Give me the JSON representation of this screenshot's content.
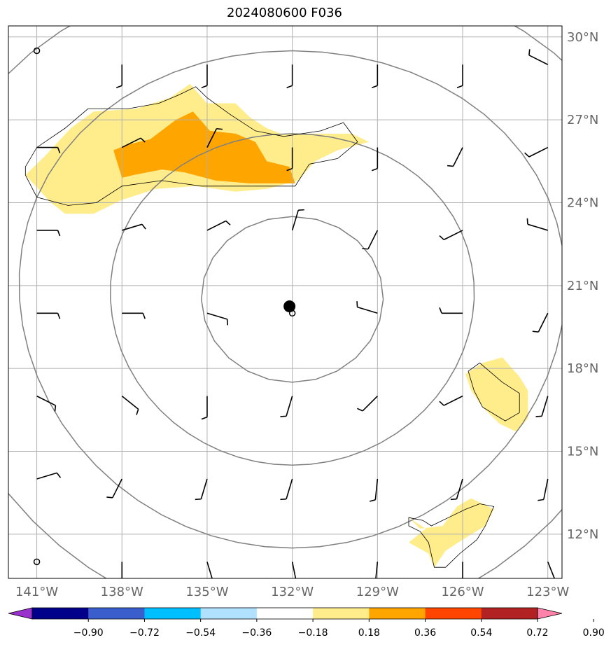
{
  "title": "2024080600 F036",
  "map": {
    "lon_range": [
      -142.0,
      -122.5
    ],
    "lat_range": [
      10.4,
      30.4
    ],
    "lon_ticks": [
      "141°W",
      "138°W",
      "135°W",
      "132°W",
      "129°W",
      "126°W",
      "123°W"
    ],
    "lat_ticks": [
      "30°N",
      "27°N",
      "24°N",
      "21°N",
      "18°N",
      "15°N",
      "12°N"
    ],
    "lon_tick_values": [
      -141,
      -138,
      -135,
      -132,
      -129,
      -126,
      -123
    ],
    "lat_tick_values": [
      30,
      27,
      24,
      21,
      18,
      15,
      12
    ],
    "grid": true,
    "center": {
      "lon": -132.0,
      "lat": 20.5,
      "marker": "filled-circle"
    },
    "range_rings_deg": [
      3,
      6,
      9,
      12
    ]
  },
  "colorbar": {
    "tick_labels": [
      "−0.90",
      "−0.72",
      "−0.54",
      "−0.36",
      "−0.18",
      "0.18",
      "0.36",
      "0.54",
      "0.72",
      "0.90"
    ],
    "levels": [
      -0.9,
      -0.72,
      -0.54,
      -0.36,
      -0.18,
      0.18,
      0.36,
      0.54,
      0.72,
      0.9
    ],
    "colors": [
      "#9932cc",
      "#00008b",
      "#3a5fcd",
      "#00bfff",
      "#b0e2ff",
      "#ffffff",
      "#ffec8b",
      "#ffa500",
      "#ff4500",
      "#b22222",
      "#ff82ab"
    ],
    "extend": "both"
  },
  "chart_data": {
    "type": "heatmap",
    "title": "2024080600 F036",
    "contour_fill": [
      {
        "level": "0.18-0.36",
        "color": "#ffec8b",
        "region": "north",
        "polygon": [
          [
            -141.4,
            25.0
          ],
          [
            -140.7,
            25.7
          ],
          [
            -139.8,
            26.7
          ],
          [
            -139.0,
            27.3
          ],
          [
            -137.5,
            27.4
          ],
          [
            -136.3,
            27.8
          ],
          [
            -135.6,
            28.3
          ],
          [
            -135.0,
            27.6
          ],
          [
            -134.0,
            27.6
          ],
          [
            -133.5,
            27.1
          ],
          [
            -132.9,
            26.7
          ],
          [
            -132.4,
            26.5
          ],
          [
            -131.1,
            26.5
          ],
          [
            -129.9,
            26.5
          ],
          [
            -129.3,
            26.2
          ],
          [
            -130.4,
            25.9
          ],
          [
            -131.2,
            25.5
          ],
          [
            -131.8,
            24.8
          ],
          [
            -132.9,
            24.5
          ],
          [
            -134.0,
            24.4
          ],
          [
            -135.4,
            24.6
          ],
          [
            -136.8,
            24.5
          ],
          [
            -138.0,
            24.1
          ],
          [
            -139.0,
            23.6
          ],
          [
            -140.0,
            23.6
          ],
          [
            -140.5,
            24.0
          ]
        ]
      },
      {
        "level": "0.36-0.54",
        "color": "#ffa500",
        "region": "north",
        "polygon": [
          [
            -138.3,
            25.9
          ],
          [
            -137.8,
            26.1
          ],
          [
            -137.0,
            26.3
          ],
          [
            -136.1,
            27.0
          ],
          [
            -135.5,
            27.3
          ],
          [
            -134.9,
            26.6
          ],
          [
            -134.0,
            26.5
          ],
          [
            -133.3,
            26.2
          ],
          [
            -132.9,
            25.5
          ],
          [
            -132.1,
            25.3
          ],
          [
            -131.9,
            24.7
          ],
          [
            -133.5,
            24.7
          ],
          [
            -134.7,
            24.8
          ],
          [
            -135.8,
            25.1
          ],
          [
            -136.6,
            25.2
          ],
          [
            -137.6,
            25.0
          ],
          [
            -138.0,
            24.9
          ]
        ]
      },
      {
        "level": "0.18-0.36",
        "color": "#ffec8b",
        "region": "east",
        "polygon": [
          [
            -124.6,
            18.4
          ],
          [
            -124.0,
            17.7
          ],
          [
            -123.7,
            17.2
          ],
          [
            -123.7,
            16.2
          ],
          [
            -124.1,
            15.7
          ],
          [
            -124.7,
            16.0
          ],
          [
            -125.3,
            16.6
          ],
          [
            -125.7,
            17.2
          ],
          [
            -125.9,
            17.8
          ],
          [
            -125.3,
            18.2
          ]
        ]
      },
      {
        "level": "0.18-0.36",
        "color": "#ffec8b",
        "region": "southeast",
        "polygon": [
          [
            -127.9,
            12.6
          ],
          [
            -127.3,
            12.2
          ],
          [
            -127.9,
            11.7
          ],
          [
            -127.2,
            11.3
          ],
          [
            -127.0,
            10.8
          ],
          [
            -126.6,
            11.4
          ],
          [
            -126.0,
            11.8
          ],
          [
            -125.2,
            12.3
          ],
          [
            -124.9,
            12.9
          ],
          [
            -125.7,
            13.3
          ],
          [
            -126.2,
            13.0
          ],
          [
            -126.7,
            12.3
          ],
          [
            -127.5,
            12.2
          ]
        ]
      }
    ],
    "contour_lines": [
      {
        "polygon": [
          [
            -141.4,
            25.0
          ],
          [
            -141.0,
            24.2
          ],
          [
            -139.9,
            23.9
          ],
          [
            -138.9,
            24.0
          ],
          [
            -138.0,
            24.6
          ],
          [
            -136.6,
            24.8
          ],
          [
            -135.2,
            24.6
          ],
          [
            -133.2,
            24.6
          ],
          [
            -131.9,
            24.6
          ],
          [
            -131.4,
            25.4
          ],
          [
            -130.4,
            25.6
          ],
          [
            -129.7,
            26.2
          ],
          [
            -130.2,
            26.9
          ],
          [
            -131.0,
            26.6
          ],
          [
            -132.3,
            26.4
          ],
          [
            -133.3,
            26.6
          ],
          [
            -134.2,
            27.2
          ],
          [
            -135.0,
            27.8
          ],
          [
            -135.4,
            28.2
          ],
          [
            -136.0,
            27.9
          ],
          [
            -136.7,
            27.6
          ],
          [
            -137.8,
            27.4
          ],
          [
            -139.2,
            27.4
          ],
          [
            -140.0,
            26.7
          ],
          [
            -141.0,
            26.0
          ],
          [
            -141.4,
            25.3
          ]
        ]
      },
      {
        "polygon": [
          [
            -125.8,
            17.9
          ],
          [
            -125.4,
            18.2
          ],
          [
            -124.6,
            17.5
          ],
          [
            -124.0,
            17.1
          ],
          [
            -124.0,
            16.4
          ],
          [
            -124.5,
            16.1
          ],
          [
            -125.3,
            16.6
          ],
          [
            -125.6,
            17.2
          ]
        ]
      },
      {
        "polygon": [
          [
            -127.9,
            12.6
          ],
          [
            -127.4,
            12.5
          ],
          [
            -127.1,
            12.3
          ],
          [
            -126.5,
            12.6
          ],
          [
            -125.9,
            12.9
          ],
          [
            -125.4,
            13.1
          ],
          [
            -124.9,
            13.0
          ],
          [
            -125.2,
            12.3
          ],
          [
            -125.5,
            11.8
          ],
          [
            -126.1,
            11.3
          ],
          [
            -126.6,
            10.8
          ],
          [
            -127.0,
            10.8
          ],
          [
            -127.2,
            11.7
          ],
          [
            -127.5,
            12.1
          ],
          [
            -127.9,
            12.3
          ]
        ]
      }
    ],
    "wind_barbs": [
      {
        "lon": -141,
        "lat": 29.5,
        "calm": true
      },
      {
        "lon": -138,
        "lat": 29.0,
        "u": 0,
        "v": -1
      },
      {
        "lon": -135,
        "lat": 29.0,
        "u": 0,
        "v": -1
      },
      {
        "lon": -132,
        "lat": 29.0,
        "u": 0,
        "v": -1
      },
      {
        "lon": -129,
        "lat": 29.0,
        "u": 0,
        "v": -1
      },
      {
        "lon": -126,
        "lat": 29.0,
        "u": 0,
        "v": -1
      },
      {
        "lon": -123,
        "lat": 29.0,
        "u": -1,
        "v": 0.5
      },
      {
        "lon": -141,
        "lat": 26.0,
        "u": 1,
        "v": 0
      },
      {
        "lon": -138,
        "lat": 26.0,
        "u": 1,
        "v": 0.5
      },
      {
        "lon": -135,
        "lat": 26.0,
        "u": 0.5,
        "v": 1
      },
      {
        "lon": -132,
        "lat": 26.0,
        "u": 0,
        "v": -1
      },
      {
        "lon": -129,
        "lat": 26.0,
        "u": 0,
        "v": -1
      },
      {
        "lon": -126,
        "lat": 26.0,
        "u": -0.5,
        "v": -1
      },
      {
        "lon": -123,
        "lat": 26.0,
        "u": -1,
        "v": -0.5
      },
      {
        "lon": -141,
        "lat": 23.0,
        "u": 1,
        "v": 0
      },
      {
        "lon": -138,
        "lat": 23.0,
        "u": 1,
        "v": 0.3
      },
      {
        "lon": -135,
        "lat": 23.0,
        "u": 1,
        "v": 0.5
      },
      {
        "lon": -132,
        "lat": 23.0,
        "u": 0.3,
        "v": 1
      },
      {
        "lon": -129,
        "lat": 23.0,
        "u": -0.5,
        "v": -1
      },
      {
        "lon": -126,
        "lat": 23.0,
        "u": -1,
        "v": -0.5
      },
      {
        "lon": -123,
        "lat": 23.0,
        "u": -1,
        "v": 0.3
      },
      {
        "lon": -141,
        "lat": 20.0,
        "u": 1,
        "v": 0
      },
      {
        "lon": -138,
        "lat": 20.0,
        "u": 1,
        "v": 0
      },
      {
        "lon": -135,
        "lat": 20.0,
        "u": 1,
        "v": -0.3
      },
      {
        "lon": -132,
        "lat": 20.0,
        "calm": true
      },
      {
        "lon": -129,
        "lat": 20.0,
        "u": -1,
        "v": 0.3
      },
      {
        "lon": -126,
        "lat": 20.0,
        "u": -1,
        "v": 0
      },
      {
        "lon": -123,
        "lat": 20.0,
        "u": -0.5,
        "v": -1
      },
      {
        "lon": -141,
        "lat": 17.0,
        "u": 1,
        "v": -0.5
      },
      {
        "lon": -138,
        "lat": 17.0,
        "u": 1,
        "v": -0.8
      },
      {
        "lon": -135,
        "lat": 17.0,
        "u": 0,
        "v": -1
      },
      {
        "lon": -132,
        "lat": 17.0,
        "u": -0.3,
        "v": -1
      },
      {
        "lon": -129,
        "lat": 17.0,
        "u": -0.8,
        "v": -0.8
      },
      {
        "lon": -126,
        "lat": 17.0,
        "u": -1,
        "v": -0.5
      },
      {
        "lon": -123,
        "lat": 17.0,
        "u": -0.3,
        "v": -1
      },
      {
        "lon": -141,
        "lat": 14.0,
        "u": 1,
        "v": 0.3
      },
      {
        "lon": -138,
        "lat": 14.0,
        "u": -0.5,
        "v": -1
      },
      {
        "lon": -135,
        "lat": 14.0,
        "u": -0.3,
        "v": -1
      },
      {
        "lon": -132,
        "lat": 14.0,
        "u": -0.3,
        "v": -1
      },
      {
        "lon": -129,
        "lat": 14.0,
        "u": -0.1,
        "v": -1
      },
      {
        "lon": -126,
        "lat": 14.0,
        "u": -0.3,
        "v": -1
      },
      {
        "lon": -123,
        "lat": 14.0,
        "u": -0.2,
        "v": -1
      },
      {
        "lon": -141,
        "lat": 11.0,
        "calm": true
      },
      {
        "lon": -138,
        "lat": 11.0,
        "u": 0,
        "v": -1
      },
      {
        "lon": -135,
        "lat": 11.0,
        "u": 0.3,
        "v": -1
      },
      {
        "lon": -132,
        "lat": 11.0,
        "u": 0.2,
        "v": -1
      },
      {
        "lon": -129,
        "lat": 11.0,
        "u": -0.1,
        "v": -1
      },
      {
        "lon": -126,
        "lat": 11.0,
        "u": 0,
        "v": -1
      },
      {
        "lon": -123,
        "lat": 11.0,
        "u": 0.4,
        "v": -1
      }
    ]
  }
}
